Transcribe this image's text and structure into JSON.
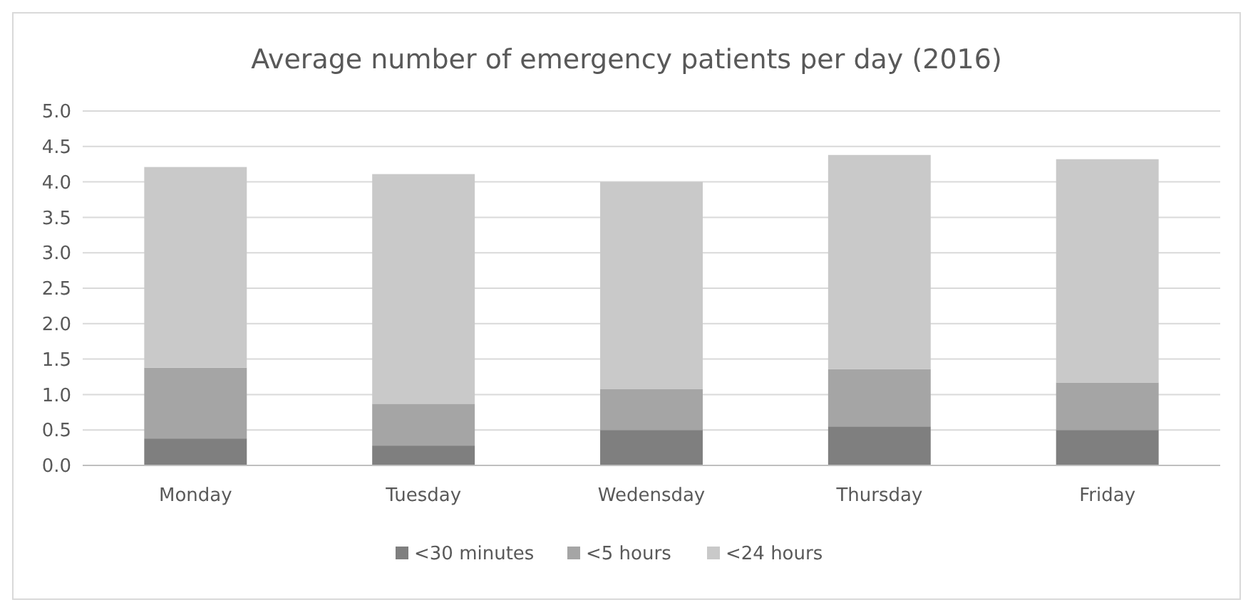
{
  "chart_data": {
    "type": "bar",
    "title": "Average number of emergency patients per day (2016)",
    "categories": [
      "Monday",
      "Tuesday",
      "Wedensday",
      "Thursday",
      "Friday"
    ],
    "stacked": true,
    "series": [
      {
        "name": "<30 minutes",
        "color": "#7f7f7f",
        "values": [
          0.38,
          0.28,
          0.5,
          0.55,
          0.5
        ]
      },
      {
        "name": "<5 hours",
        "color": "#a5a5a5",
        "values": [
          1.0,
          0.59,
          0.58,
          0.81,
          0.67
        ]
      },
      {
        "name": "<24 hours",
        "color": "#c9c9c9",
        "values": [
          2.83,
          3.24,
          2.92,
          3.02,
          3.15
        ]
      }
    ],
    "ylim": [
      0,
      5
    ],
    "yticks": [
      {
        "value": 0,
        "label": "0.0"
      },
      {
        "value": 0.5,
        "label": "0.5"
      },
      {
        "value": 1,
        "label": "1.0"
      },
      {
        "value": 1.5,
        "label": "1.5"
      },
      {
        "value": 2,
        "label": "2.0"
      },
      {
        "value": 2.5,
        "label": "2.5"
      },
      {
        "value": 3,
        "label": "3.0"
      },
      {
        "value": 3.5,
        "label": "3.5"
      },
      {
        "value": 4,
        "label": "4.0"
      },
      {
        "value": 4.5,
        "label": "4.5"
      },
      {
        "value": 5,
        "label": "5.0"
      }
    ],
    "grid": "y",
    "legend": "bottom"
  }
}
